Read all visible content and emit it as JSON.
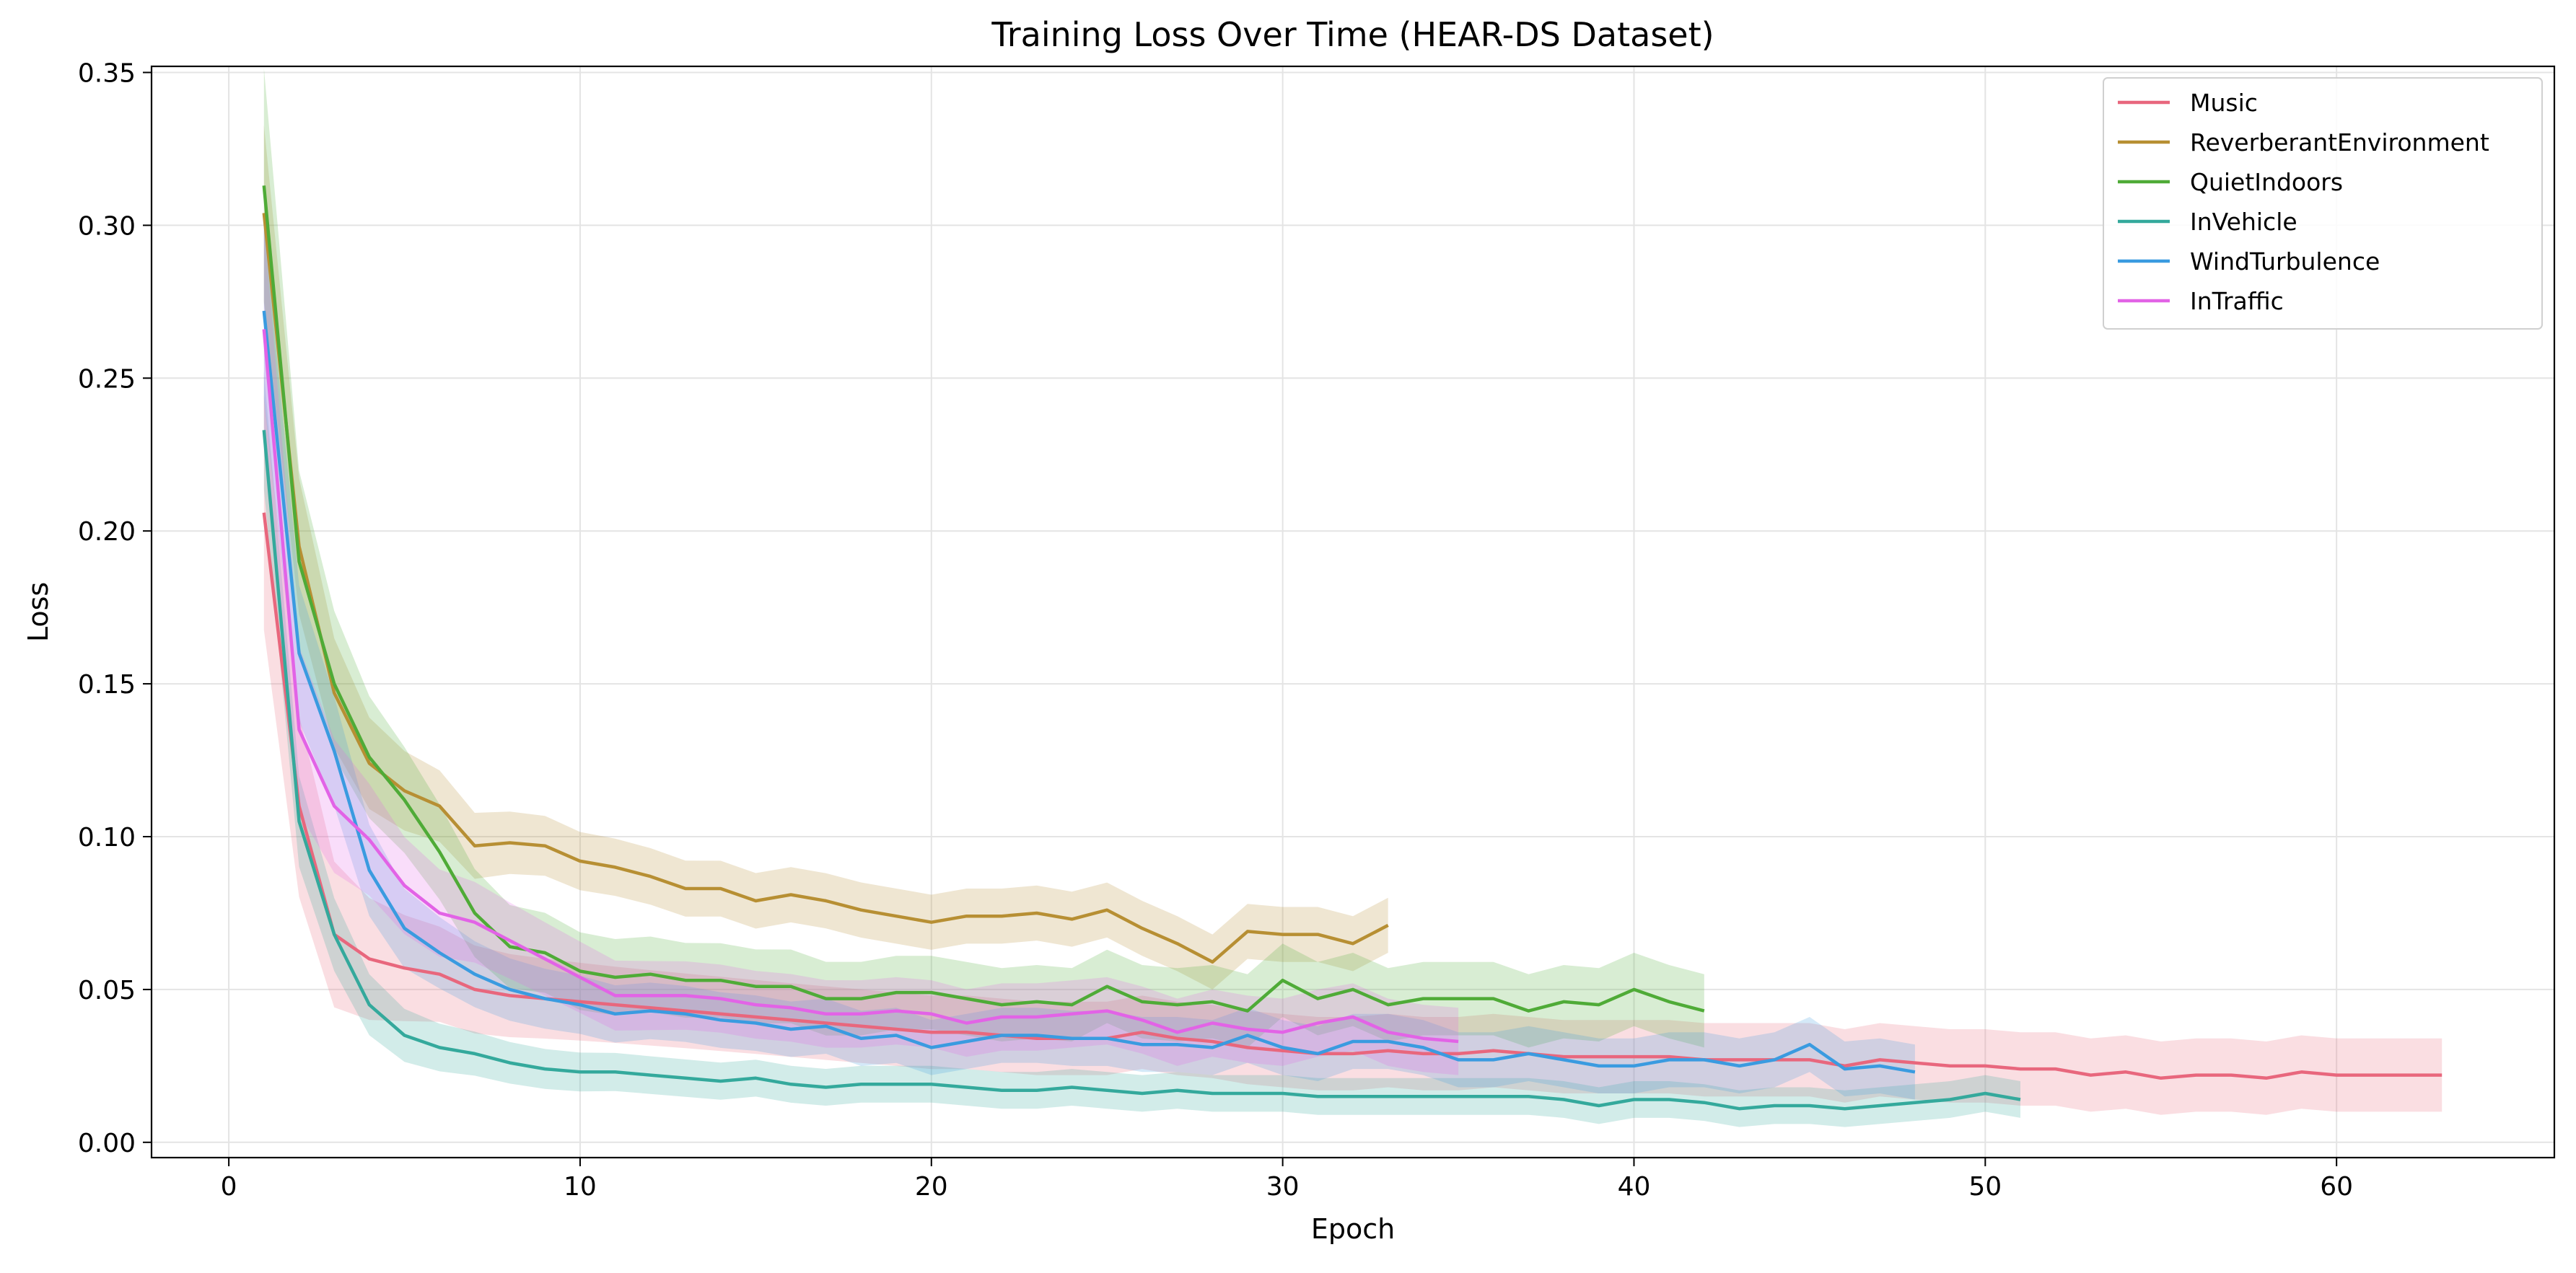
{
  "chart_data": {
    "type": "line",
    "title": "Training Loss Over Time (HEAR-DS Dataset)",
    "xlabel": "Epoch",
    "ylabel": "Loss",
    "xlim": [
      -2.2,
      66.2
    ],
    "ylim": [
      -0.005,
      0.352
    ],
    "xticks": [
      0,
      10,
      20,
      30,
      40,
      50,
      60
    ],
    "xtick_labels": [
      "0",
      "10",
      "20",
      "30",
      "40",
      "50",
      "60"
    ],
    "yticks": [
      0.0,
      0.05,
      0.1,
      0.15,
      0.2,
      0.25,
      0.3,
      0.35
    ],
    "ytick_labels": [
      "0.00",
      "0.05",
      "0.10",
      "0.15",
      "0.20",
      "0.25",
      "0.30",
      "0.35"
    ],
    "grid": true,
    "legend_position": "top-right",
    "series": [
      {
        "name": "Music",
        "color": "#e8677d",
        "x": [
          1,
          2,
          3,
          4,
          5,
          6,
          7,
          8,
          9,
          10,
          11,
          12,
          13,
          14,
          15,
          16,
          17,
          18,
          19,
          20,
          21,
          22,
          23,
          24,
          25,
          26,
          27,
          28,
          29,
          30,
          31,
          32,
          33,
          34,
          35,
          36,
          37,
          38,
          39,
          40,
          41,
          42,
          43,
          44,
          45,
          46,
          47,
          48,
          49,
          50,
          51,
          52,
          53,
          54,
          55,
          56,
          57,
          58,
          59,
          60,
          61,
          62,
          63
        ],
        "y": [
          0.206,
          0.11,
          0.068,
          0.06,
          0.057,
          0.055,
          0.05,
          0.048,
          0.047,
          0.046,
          0.045,
          0.044,
          0.043,
          0.042,
          0.041,
          0.04,
          0.039,
          0.038,
          0.037,
          0.036,
          0.036,
          0.035,
          0.034,
          0.034,
          0.034,
          0.036,
          0.034,
          0.033,
          0.031,
          0.03,
          0.029,
          0.029,
          0.03,
          0.029,
          0.029,
          0.03,
          0.029,
          0.028,
          0.028,
          0.028,
          0.028,
          0.027,
          0.027,
          0.027,
          0.027,
          0.025,
          0.027,
          0.026,
          0.025,
          0.025,
          0.024,
          0.024,
          0.022,
          0.023,
          0.021,
          0.022,
          0.022,
          0.021,
          0.023,
          0.022,
          0.022,
          0.022,
          0.022
        ],
        "band": 0.012
      },
      {
        "name": "ReverberantEnvironment",
        "color": "#b78f33",
        "x": [
          1,
          2,
          3,
          4,
          5,
          6,
          7,
          8,
          9,
          10,
          11,
          12,
          13,
          14,
          15,
          16,
          17,
          18,
          19,
          20,
          21,
          22,
          23,
          24,
          25,
          26,
          27,
          28,
          29,
          30,
          31,
          32,
          33
        ],
        "y": [
          0.304,
          0.195,
          0.147,
          0.124,
          0.115,
          0.11,
          0.097,
          0.098,
          0.097,
          0.092,
          0.09,
          0.087,
          0.083,
          0.083,
          0.079,
          0.081,
          0.079,
          0.076,
          0.074,
          0.072,
          0.074,
          0.074,
          0.075,
          0.073,
          0.076,
          0.07,
          0.065,
          0.059,
          0.069,
          0.068,
          0.068,
          0.065,
          0.071
        ],
        "band": 0.009
      },
      {
        "name": "QuietIndoors",
        "color": "#4fab37",
        "x": [
          1,
          2,
          3,
          4,
          5,
          6,
          7,
          8,
          9,
          10,
          11,
          12,
          13,
          14,
          15,
          16,
          17,
          18,
          19,
          20,
          21,
          22,
          23,
          24,
          25,
          26,
          27,
          28,
          29,
          30,
          31,
          32,
          33,
          34,
          35,
          36,
          37,
          38,
          39,
          40,
          41,
          42
        ],
        "y": [
          0.313,
          0.19,
          0.15,
          0.126,
          0.112,
          0.095,
          0.075,
          0.064,
          0.062,
          0.056,
          0.054,
          0.055,
          0.053,
          0.053,
          0.051,
          0.051,
          0.047,
          0.047,
          0.049,
          0.049,
          0.047,
          0.045,
          0.046,
          0.045,
          0.051,
          0.046,
          0.045,
          0.046,
          0.043,
          0.053,
          0.047,
          0.05,
          0.045,
          0.047,
          0.047,
          0.047,
          0.043,
          0.046,
          0.045,
          0.05,
          0.046,
          0.043
        ],
        "band": 0.012
      },
      {
        "name": "InVehicle",
        "color": "#34a99c",
        "x": [
          1,
          2,
          3,
          4,
          5,
          6,
          7,
          8,
          9,
          10,
          11,
          12,
          13,
          14,
          15,
          16,
          17,
          18,
          19,
          20,
          21,
          22,
          23,
          24,
          25,
          26,
          27,
          28,
          29,
          30,
          31,
          32,
          33,
          34,
          35,
          36,
          37,
          38,
          39,
          40,
          41,
          42,
          43,
          44,
          45,
          46,
          47,
          48,
          49,
          50,
          51
        ],
        "y": [
          0.233,
          0.105,
          0.068,
          0.045,
          0.035,
          0.031,
          0.029,
          0.026,
          0.024,
          0.023,
          0.023,
          0.022,
          0.021,
          0.02,
          0.021,
          0.019,
          0.018,
          0.019,
          0.019,
          0.019,
          0.018,
          0.017,
          0.017,
          0.018,
          0.017,
          0.016,
          0.017,
          0.016,
          0.016,
          0.016,
          0.015,
          0.015,
          0.015,
          0.015,
          0.015,
          0.015,
          0.015,
          0.014,
          0.012,
          0.014,
          0.014,
          0.013,
          0.011,
          0.012,
          0.012,
          0.011,
          0.012,
          0.013,
          0.014,
          0.016,
          0.014
        ],
        "band": 0.006
      },
      {
        "name": "WindTurbulence",
        "color": "#3a9be0",
        "x": [
          1,
          2,
          3,
          4,
          5,
          6,
          7,
          8,
          9,
          10,
          11,
          12,
          13,
          14,
          15,
          16,
          17,
          18,
          19,
          20,
          21,
          22,
          23,
          24,
          25,
          26,
          27,
          28,
          29,
          30,
          31,
          32,
          33,
          34,
          35,
          36,
          37,
          38,
          39,
          40,
          41,
          42,
          43,
          44,
          45,
          46,
          47,
          48
        ],
        "y": [
          0.272,
          0.16,
          0.128,
          0.089,
          0.07,
          0.062,
          0.055,
          0.05,
          0.047,
          0.045,
          0.042,
          0.043,
          0.042,
          0.04,
          0.039,
          0.037,
          0.038,
          0.034,
          0.035,
          0.031,
          0.033,
          0.035,
          0.035,
          0.034,
          0.034,
          0.032,
          0.032,
          0.031,
          0.035,
          0.031,
          0.029,
          0.033,
          0.033,
          0.031,
          0.027,
          0.027,
          0.029,
          0.027,
          0.025,
          0.025,
          0.027,
          0.027,
          0.025,
          0.027,
          0.032,
          0.024,
          0.025,
          0.023
        ],
        "band": 0.009
      },
      {
        "name": "InTraffic",
        "color": "#e263e6",
        "x": [
          1,
          2,
          3,
          4,
          5,
          6,
          7,
          8,
          9,
          10,
          11,
          12,
          13,
          14,
          15,
          16,
          17,
          18,
          19,
          20,
          21,
          22,
          23,
          24,
          25,
          26,
          27,
          28,
          29,
          30,
          31,
          32,
          33,
          34,
          35
        ],
        "y": [
          0.266,
          0.135,
          0.11,
          0.099,
          0.084,
          0.075,
          0.072,
          0.066,
          0.06,
          0.054,
          0.048,
          0.048,
          0.048,
          0.047,
          0.045,
          0.044,
          0.042,
          0.042,
          0.043,
          0.042,
          0.039,
          0.041,
          0.041,
          0.042,
          0.043,
          0.04,
          0.036,
          0.039,
          0.037,
          0.036,
          0.039,
          0.041,
          0.036,
          0.034,
          0.033
        ],
        "band": 0.011
      }
    ]
  }
}
